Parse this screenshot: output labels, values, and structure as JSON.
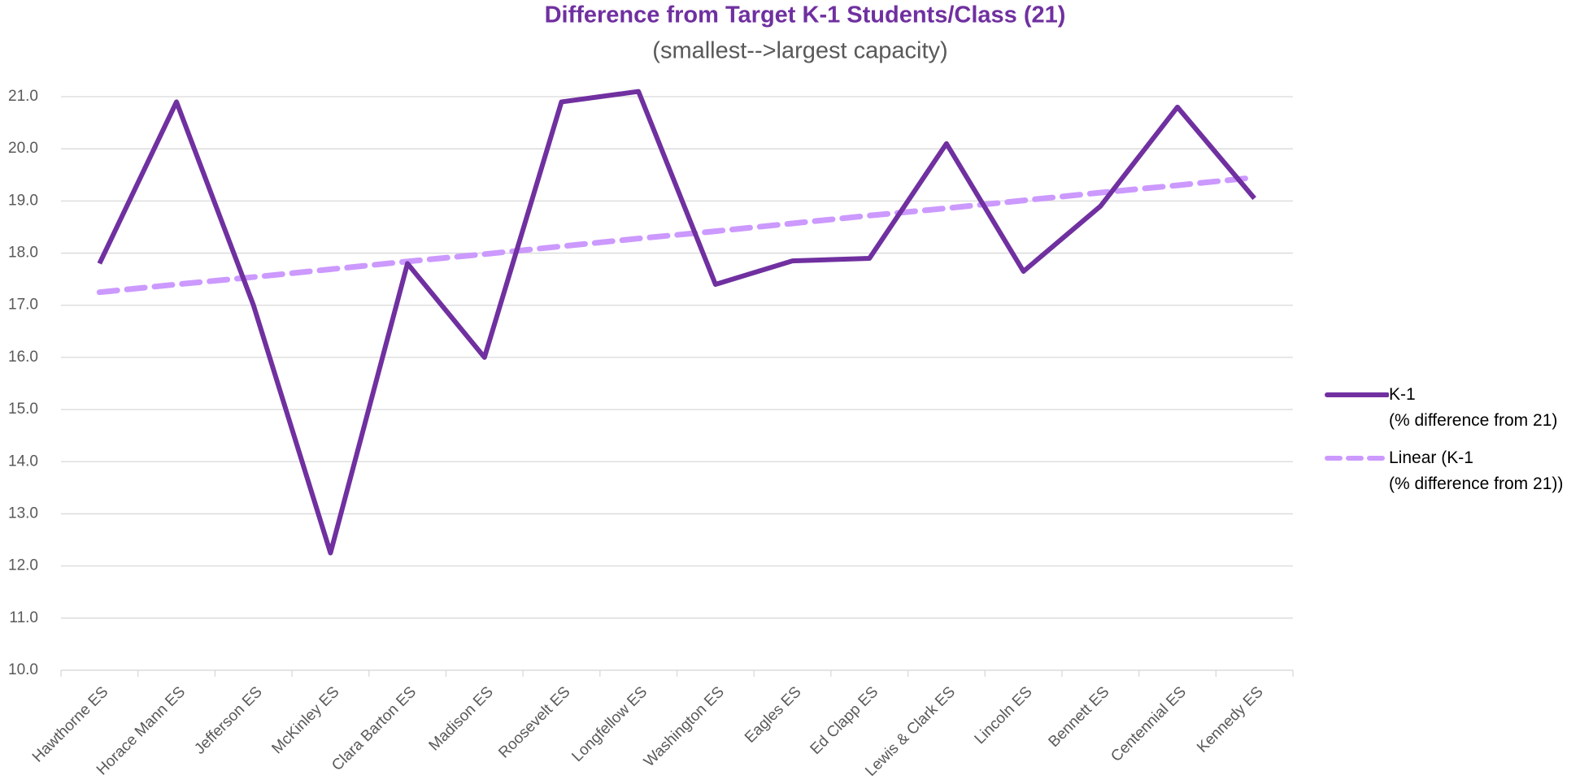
{
  "chart_data": {
    "type": "line",
    "title": "Difference from Target K-1 Students/Class (21)",
    "subtitle": "(smallest-->largest capacity)",
    "categories": [
      "Hawthorne ES",
      "Horace Mann ES",
      "Jefferson ES",
      "McKinley ES",
      "Clara Barton ES",
      "Madison ES",
      "Roosevelt ES",
      "Longfellow ES",
      "Washington ES",
      "Eagles ES",
      "Ed Clapp ES",
      "Lewis & Clark ES",
      "Lincoln ES",
      "Bennett ES",
      "Centennial ES",
      "Kennedy ES"
    ],
    "series": [
      {
        "name": "K-1\n(% difference from 21)",
        "color": "#7030a0",
        "dashed": false,
        "values": [
          17.8,
          20.9,
          17.0,
          12.25,
          17.8,
          16.0,
          20.9,
          21.1,
          17.4,
          17.85,
          17.9,
          20.1,
          17.65,
          18.9,
          20.8,
          19.05
        ]
      },
      {
        "name": "Linear (K-1\n(% difference from 21))",
        "color": "#cc99ff",
        "dashed": true,
        "values": [
          17.25,
          17.4,
          17.54,
          17.69,
          17.84,
          17.98,
          18.13,
          18.28,
          18.42,
          18.57,
          18.72,
          18.86,
          19.01,
          19.16,
          19.3,
          19.45
        ]
      }
    ],
    "ylim": [
      10,
      21
    ],
    "yticks": [
      {
        "value": 10,
        "label": "10.0"
      },
      {
        "value": 11,
        "label": "11.0"
      },
      {
        "value": 12,
        "label": "12.0"
      },
      {
        "value": 13,
        "label": "13.0"
      },
      {
        "value": 14,
        "label": "14.0"
      },
      {
        "value": 15,
        "label": "15.0"
      },
      {
        "value": 16,
        "label": "16.0"
      },
      {
        "value": 17,
        "label": "17.0"
      },
      {
        "value": 18,
        "label": "18.0"
      },
      {
        "value": 19,
        "label": "19.0"
      },
      {
        "value": 20,
        "label": "20.0"
      },
      {
        "value": 21,
        "label": "21.0"
      }
    ],
    "grid": true,
    "legend": "right"
  }
}
